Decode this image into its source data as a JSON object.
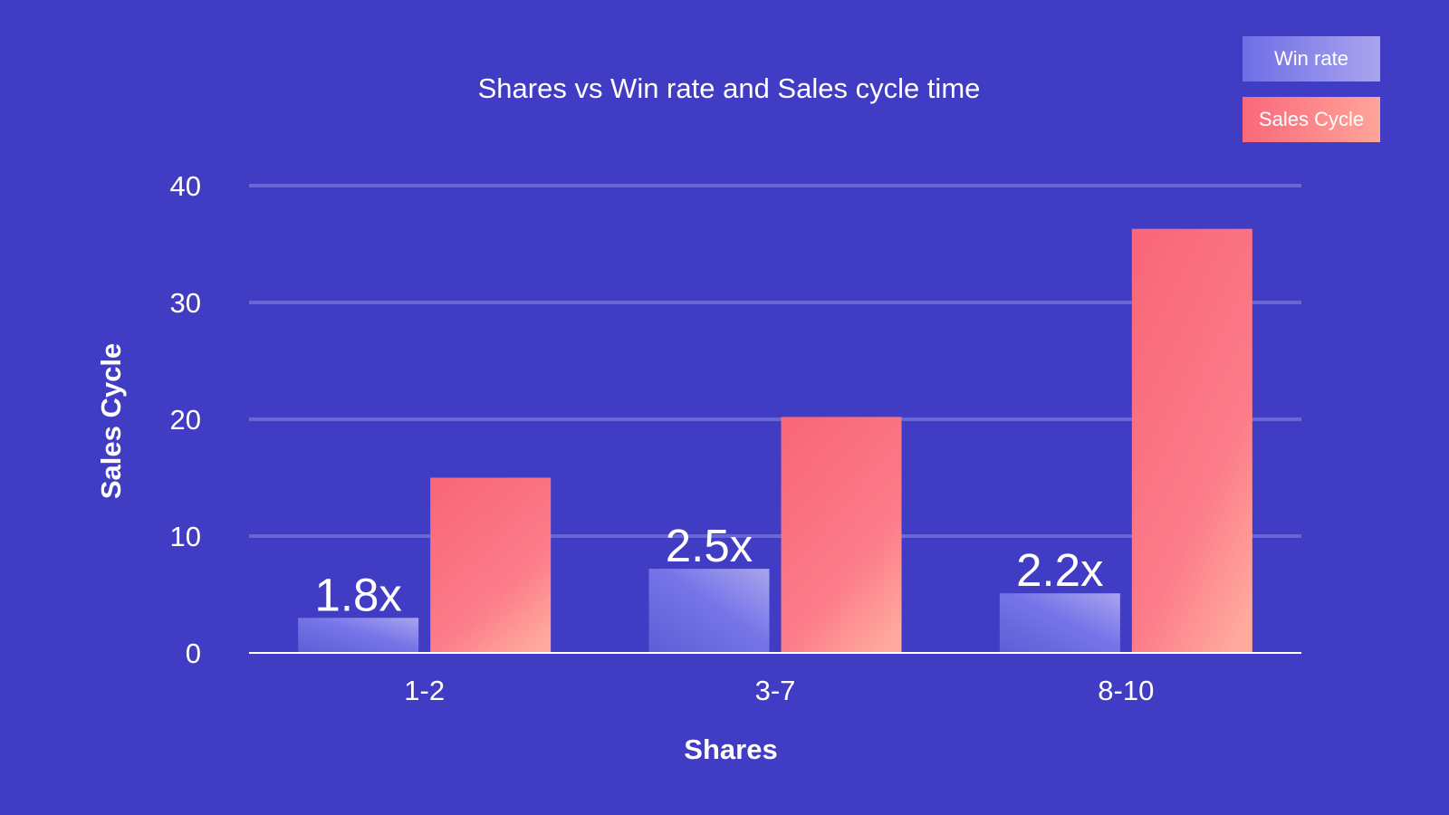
{
  "chart_data": {
    "type": "bar",
    "title": "Shares vs Win rate and Sales cycle time",
    "xlabel": "Shares",
    "ylabel": "Sales Cycle",
    "categories": [
      "1-2",
      "3-7",
      "8-10"
    ],
    "ylim": [
      0,
      40
    ],
    "yticks": [
      "0",
      "10",
      "20",
      "30",
      "40"
    ],
    "grid": true,
    "legend_position": "top-right",
    "series": [
      {
        "name": "Win rate",
        "values": [
          3,
          7.2,
          5.1
        ],
        "labels": [
          "1.8x",
          "2.5x",
          "2.2x"
        ],
        "color": "#6F6FE0"
      },
      {
        "name": "Sales Cycle",
        "values": [
          15,
          20.2,
          36.3
        ],
        "color": "#FA7487"
      }
    ]
  },
  "legend": {
    "win_rate": "Win rate",
    "sales_cycle": "Sales Cycle"
  },
  "colors": {
    "background": "#413CC4",
    "gridline": "#6A66D6",
    "axis": "#FFFFFF",
    "win_rate_start": "#5D5ED6",
    "win_rate_end": "#A9A4EE",
    "sales_cycle_start": "#F9687A",
    "sales_cycle_end": "#FFA89C"
  }
}
